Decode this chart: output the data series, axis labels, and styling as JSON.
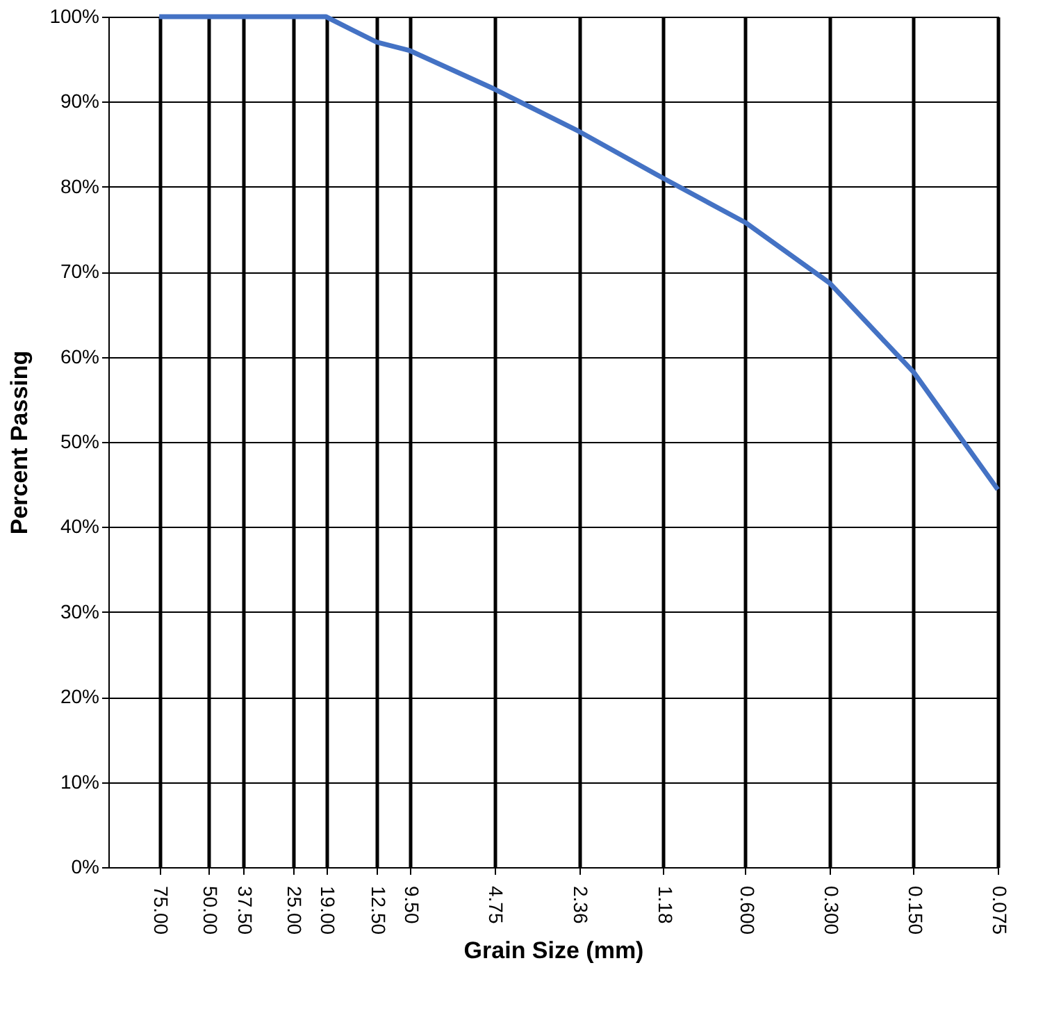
{
  "chart_data": {
    "type": "line",
    "xlabel": "Grain Size (mm)",
    "ylabel": "Percent Passing",
    "log": "x",
    "x": [
      75,
      50,
      37.5,
      25,
      19,
      12.5,
      9.5,
      4.75,
      2.36,
      1.18,
      0.6,
      0.3,
      0.15,
      0.075
    ],
    "series": [
      {
        "color": "#4472c4",
        "values": [
          100,
          100,
          100,
          100,
          100,
          97,
          96,
          91.5,
          86.5,
          81,
          75.8,
          68.7,
          58.2,
          44.4
        ]
      }
    ],
    "xlim": [
      114,
      0.075
    ],
    "xticks": [
      {
        "value": 75,
        "label": "75.00"
      },
      {
        "value": 50,
        "label": "50.00"
      },
      {
        "value": 37.5,
        "label": "37.50"
      },
      {
        "value": 25,
        "label": "25.00"
      },
      {
        "value": 19,
        "label": "19.00"
      },
      {
        "value": 12.5,
        "label": "12.50"
      },
      {
        "value": 9.5,
        "label": "9.50"
      },
      {
        "value": 4.75,
        "label": "4.75"
      },
      {
        "value": 2.36,
        "label": "2.36"
      },
      {
        "value": 1.18,
        "label": "1.18"
      },
      {
        "value": 0.6,
        "label": "0.600"
      },
      {
        "value": 0.3,
        "label": "0.300"
      },
      {
        "value": 0.15,
        "label": "0.150"
      },
      {
        "value": 0.075,
        "label": "0.075"
      }
    ],
    "ylim": [
      0,
      100
    ],
    "yticks": [
      {
        "value": 0,
        "label": "0%"
      },
      {
        "value": 10,
        "label": "10%"
      },
      {
        "value": 20,
        "label": "20%"
      },
      {
        "value": 30,
        "label": "30%"
      },
      {
        "value": 40,
        "label": "40%"
      },
      {
        "value": 50,
        "label": "50%"
      },
      {
        "value": 60,
        "label": "60%"
      },
      {
        "value": 70,
        "label": "70%"
      },
      {
        "value": 80,
        "label": "80%"
      },
      {
        "value": 90,
        "label": "90%"
      },
      {
        "value": 100,
        "label": "100%"
      }
    ],
    "grid": true,
    "marker": "none",
    "line_style": "solid"
  }
}
